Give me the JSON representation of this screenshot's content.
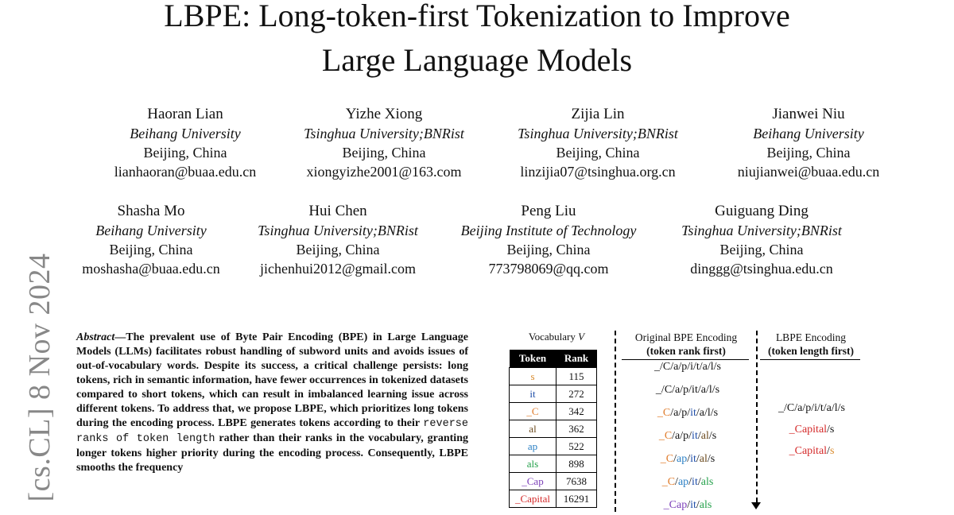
{
  "title": {
    "line1": "LBPE: Long-token-first Tokenization to Improve",
    "line2": "Large Language Models"
  },
  "authors": [
    {
      "name": "Haoran Lian",
      "affiliation": "Beihang University",
      "location": "Beijing, China",
      "email": "lianhaoran@buaa.edu.cn"
    },
    {
      "name": "Yizhe Xiong",
      "affiliation": "Tsinghua University;BNRist",
      "location": "Beijing, China",
      "email": "xiongyizhe2001@163.com"
    },
    {
      "name": "Zijia Lin",
      "affiliation": "Tsinghua University;BNRist",
      "location": "Beijing, China",
      "email": "linzijia07@tsinghua.org.cn"
    },
    {
      "name": "Jianwei Niu",
      "affiliation": "Beihang University",
      "location": "Beijing, China",
      "email": "niujianwei@buaa.edu.cn"
    },
    {
      "name": "Shasha Mo",
      "affiliation": "Beihang University",
      "location": "Beijing, China",
      "email": "moshasha@buaa.edu.cn"
    },
    {
      "name": "Hui Chen",
      "affiliation": "Tsinghua University;BNRist",
      "location": "Beijing, China",
      "email": "jichenhui2012@gmail.com"
    },
    {
      "name": "Peng Liu",
      "affiliation": "Beijing Institute of Technology",
      "location": "Beijing, China",
      "email": "773798069@qq.com"
    },
    {
      "name": "Guiguang Ding",
      "affiliation": "Tsinghua University;BNRist",
      "location": "Beijing, China",
      "email": "dinggg@tsinghua.edu.cn"
    }
  ],
  "arxiv_stamp": "[cs.CL]  8 Nov 2024",
  "abstract": {
    "lead": "Abstract",
    "dash": "—",
    "text1": "The prevalent use of Byte Pair Encoding (BPE) in Large Language Models (LLMs) facilitates robust handling of subword units and avoids issues of out-of-vocabulary words. Despite its success, a critical challenge persists: long tokens, rich in semantic information, have fewer occurrences in tokenized datasets compared to short tokens, which can result in imbalanced learning issue across different tokens. To address that, we propose LBPE, which prioritizes long tokens during the encoding process. LBPE generates tokens according to their",
    "mono": "reverse ranks of token length",
    "text2": "rather than their ranks in the vocabulary, granting longer tokens higher priority during the encoding process. Consequently, LBPE smooths the frequency"
  },
  "figure": {
    "vocab_title": "Vocabulary",
    "vocab_symbol": "V",
    "headers": [
      "Token",
      "Rank"
    ],
    "rows": [
      {
        "token": "s",
        "rank": "115",
        "color": "#d98a2b"
      },
      {
        "token": "it",
        "rank": "272",
        "color": "#1f4ea8"
      },
      {
        "token": "_C",
        "rank": "342",
        "color": "#e07b2a"
      },
      {
        "token": "al",
        "rank": "362",
        "color": "#6b4a1e"
      },
      {
        "token": "ap",
        "rank": "522",
        "color": "#2a7fc4"
      },
      {
        "token": "als",
        "rank": "898",
        "color": "#23a04a"
      },
      {
        "token": "_Cap",
        "rank": "7638",
        "color": "#7b3fb8"
      },
      {
        "token": "_Capital",
        "rank": "16291",
        "color": "#d42a2a"
      }
    ],
    "bpe_title": "Original BPE Encoding",
    "bpe_sub": "(token rank first)",
    "lbpe_title": "LBPE Encoding",
    "lbpe_sub": "(token length first)",
    "colors": {
      "s": "#d98a2b",
      "it": "#1f4ea8",
      "C": "#e07b2a",
      "al": "#6b4a1e",
      "ap": "#2a7fc4",
      "als": "#23a04a",
      "Cap": "#7b3fb8",
      "Capital": "#d42a2a",
      "plain": "#111111"
    }
  }
}
